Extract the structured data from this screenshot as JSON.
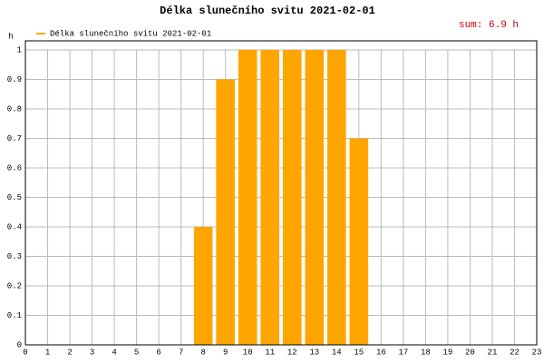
{
  "chart_data": {
    "type": "bar",
    "title": "Délka slunečního svitu 2021-02-01",
    "annotation": "sum: 6.9 h",
    "y_label": "h",
    "series": [
      {
        "name": "Délka slunečního svitu 2021-02-01",
        "color": "#ffa500",
        "x": [
          8,
          9,
          10,
          11,
          12,
          13,
          14,
          15
        ],
        "values": [
          0.4,
          0.9,
          1,
          1,
          1,
          1,
          1,
          0.7
        ]
      }
    ],
    "xlim": [
      0,
      23
    ],
    "xticks": [
      0,
      1,
      2,
      3,
      4,
      5,
      6,
      7,
      8,
      9,
      10,
      11,
      12,
      13,
      14,
      15,
      16,
      17,
      18,
      19,
      20,
      21,
      22,
      23
    ],
    "ylim": [
      0,
      1
    ],
    "yticks": [
      0,
      0.1,
      0.2,
      0.3,
      0.4,
      0.5,
      0.6,
      0.7,
      0.8,
      0.9,
      1
    ],
    "grid": true,
    "legend": "top-left"
  }
}
